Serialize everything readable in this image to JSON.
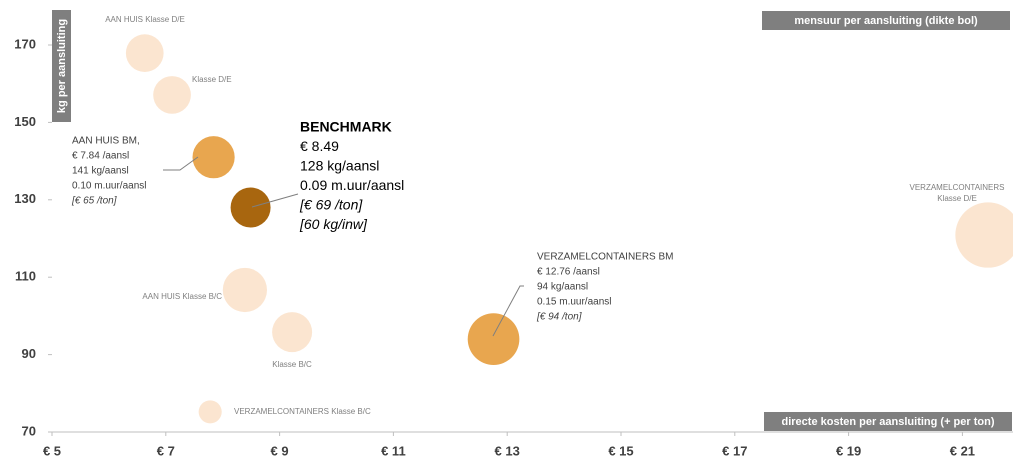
{
  "chart_data": {
    "type": "bubble",
    "y_axis_label": "kg per aansluiting",
    "size_label": "mensuur per aansluiting (dikte bol)",
    "x_axis_label": "directe kosten per aansluiting (+ per ton)",
    "xlim": [
      5,
      22
    ],
    "ylim": [
      70,
      180
    ],
    "xticks": [
      {
        "value": 5,
        "label": "€ 5"
      },
      {
        "value": 7,
        "label": "€ 7"
      },
      {
        "value": 9,
        "label": "€ 9"
      },
      {
        "value": 11,
        "label": "€ 11"
      },
      {
        "value": 13,
        "label": "€ 13"
      },
      {
        "value": 15,
        "label": "€ 15"
      },
      {
        "value": 17,
        "label": "€ 17"
      },
      {
        "value": 19,
        "label": "€ 19"
      },
      {
        "value": 21,
        "label": "€ 21"
      }
    ],
    "yticks": [
      70,
      90,
      110,
      130,
      150,
      170
    ],
    "points": [
      {
        "x": 6.63,
        "y": 167.9,
        "size": 0.08,
        "color": "#fbe5d0",
        "label": [
          "AAN HUIS Klasse D/E"
        ]
      },
      {
        "x": 7.11,
        "y": 157.1,
        "size": 0.08,
        "color": "#fbe5d0",
        "label": [
          "Klasse D/E"
        ]
      },
      {
        "x": 7.84,
        "y": 141,
        "size": 0.1,
        "color": "#e8a64f",
        "label": [
          "AAN HUIS BM,",
          "€ 7.84 /aansl",
          "141 kg/aansl",
          "0.10 m.uur/aansl",
          "[€ 65 /ton]"
        ]
      },
      {
        "x": 8.49,
        "y": 128,
        "size": 0.09,
        "color": "#a8660f",
        "label": [
          "BENCHMARK",
          "€ 8.49",
          "128 kg/aansl",
          "0.09 m.uur/aansl",
          "[€ 69 /ton]",
          "[60 kg/inw]"
        ]
      },
      {
        "x": 8.39,
        "y": 106.7,
        "size": 0.11,
        "color": "#fbe5d0",
        "label": [
          "AAN HUIS Klasse B/C"
        ]
      },
      {
        "x": 9.22,
        "y": 95.8,
        "size": 0.09,
        "color": "#fbe5d0",
        "label": [
          "Klasse B/C"
        ]
      },
      {
        "x": 7.78,
        "y": 75.2,
        "size": 0.03,
        "color": "#fbe5d0",
        "label": [
          "VERZAMELCONTAINERS Klasse B/C"
        ]
      },
      {
        "x": 12.76,
        "y": 94,
        "size": 0.15,
        "color": "#e8a64f",
        "label": [
          "VERZAMELCONTAINERS BM",
          "€ 12.76 /aansl",
          "94 kg/aansl",
          "0.15 m.uur/aansl",
          "[€ 94 /ton]"
        ]
      },
      {
        "x": 21.45,
        "y": 120.9,
        "size": 0.24,
        "color": "#fbe5d0",
        "label": [
          "VERZAMELCONTAINERS",
          "Klasse D/E"
        ]
      }
    ]
  }
}
